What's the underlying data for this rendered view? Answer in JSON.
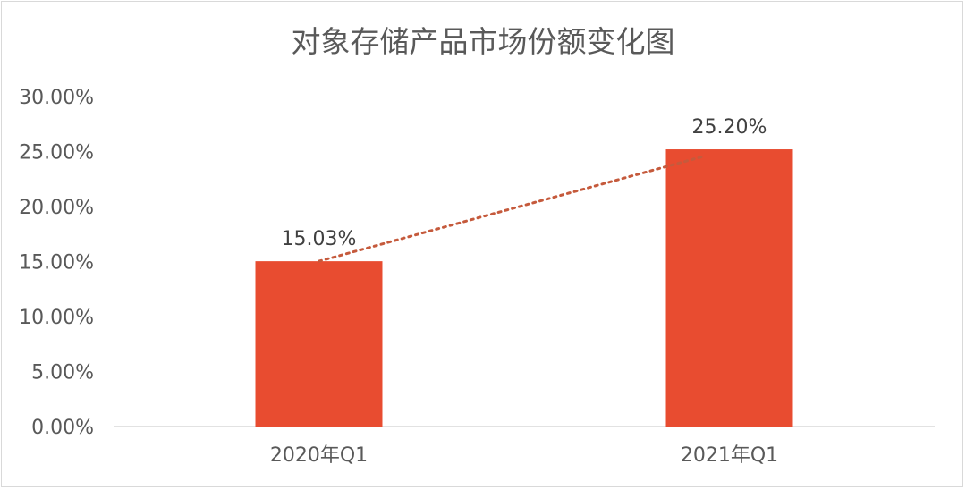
{
  "chart_data": {
    "type": "bar",
    "title": "对象存储产品市场份额变化图",
    "categories": [
      "2020年Q1",
      "2021年Q1"
    ],
    "values": [
      15.03,
      25.2
    ],
    "data_labels": [
      "15.03%",
      "25.20%"
    ],
    "ylim": [
      0,
      30
    ],
    "yticks": [
      0,
      5,
      10,
      15,
      20,
      25,
      30
    ],
    "ytick_labels": [
      "0.00%",
      "5.00%",
      "10.00%",
      "15.00%",
      "20.00%",
      "25.00%",
      "30.00%"
    ],
    "xlabel": "",
    "ylabel": "",
    "grid": false,
    "trendline": "linear-dotted",
    "colors": {
      "bar": "#e84c30",
      "trendline": "#c55a3c",
      "axis": "#d9d9d9",
      "text": "#595959"
    }
  }
}
